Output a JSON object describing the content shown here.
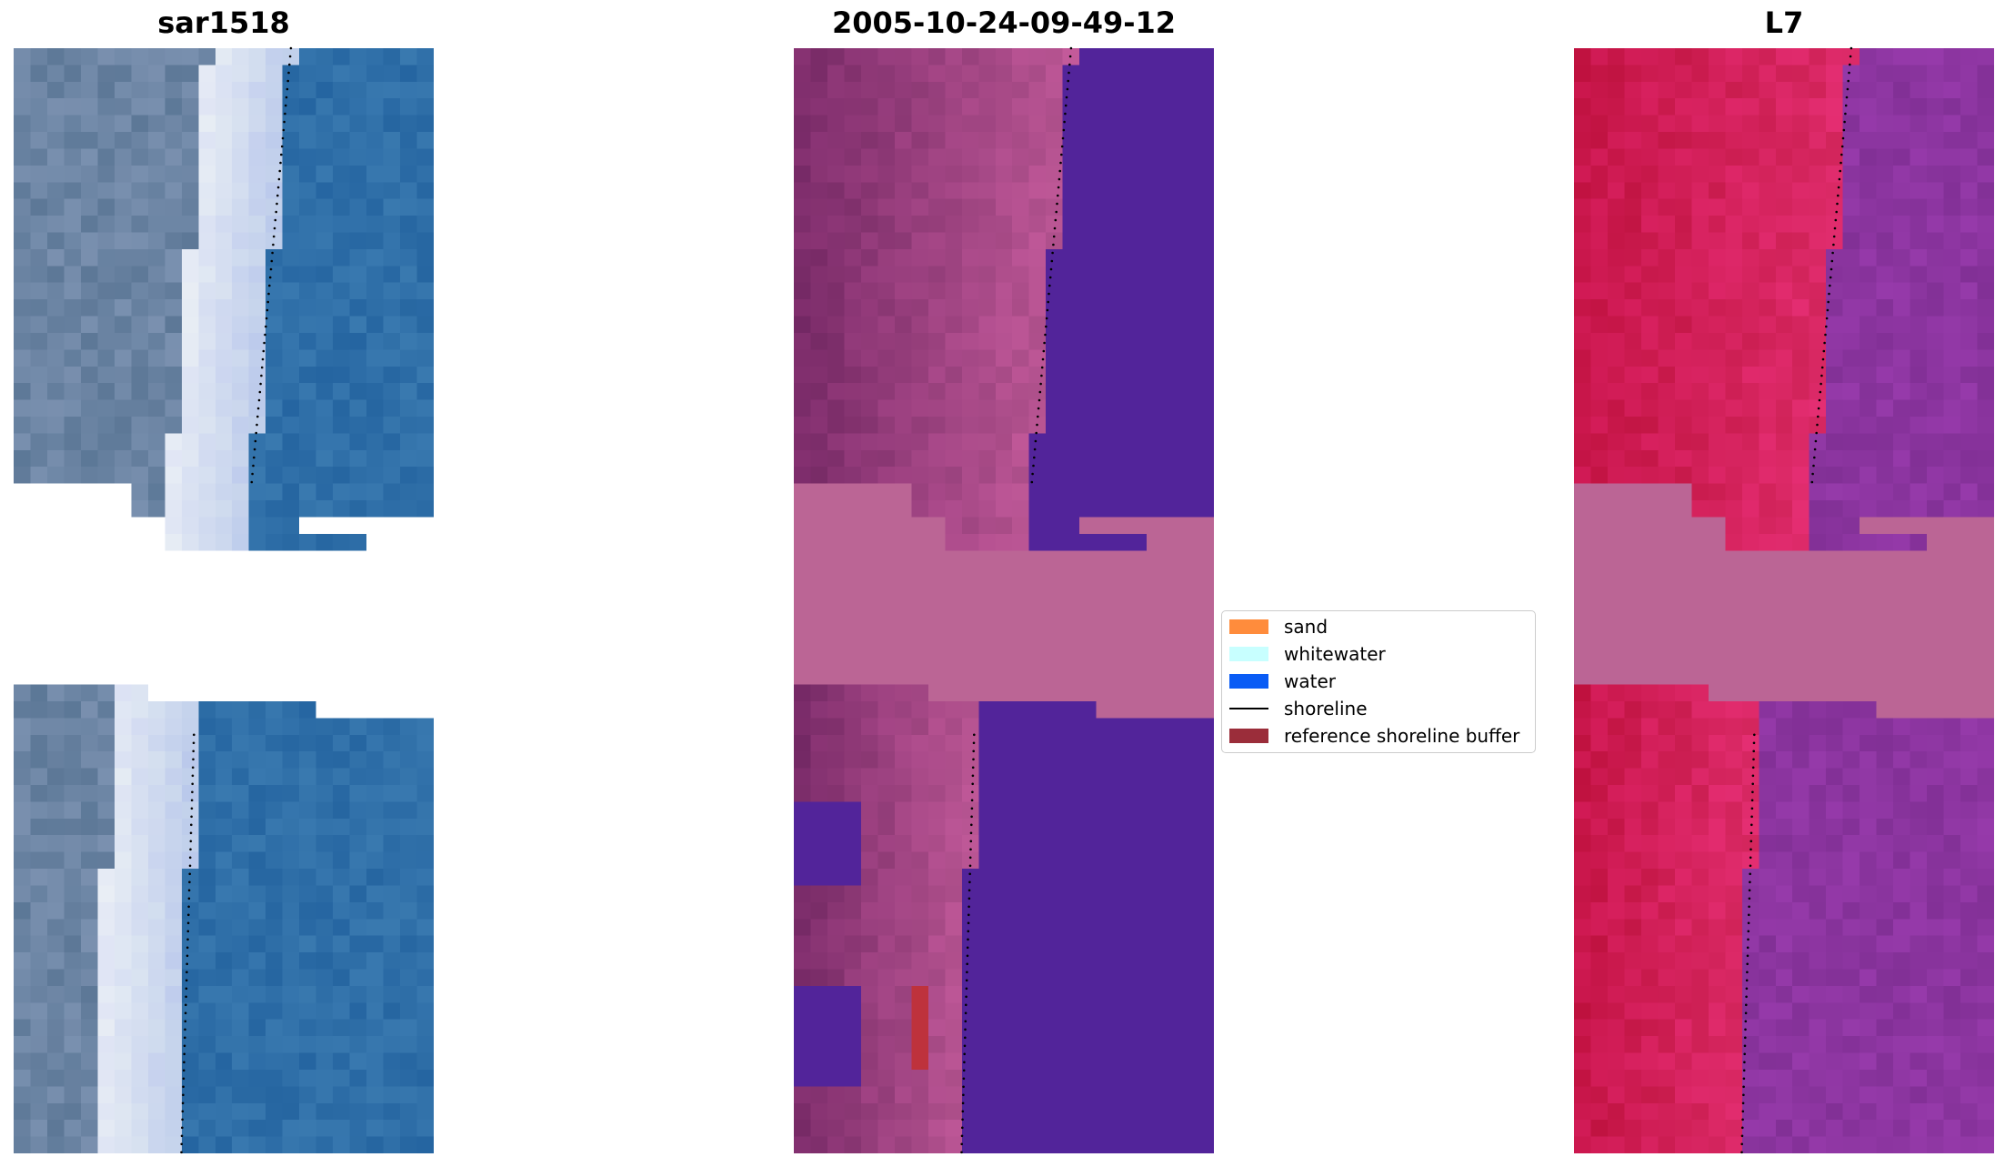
{
  "panels": [
    {
      "title": "sar1518",
      "kind": "rgb"
    },
    {
      "title": "2005-10-24-09-49-12",
      "kind": "classified"
    },
    {
      "title": "L7",
      "kind": "falsecolor"
    }
  ],
  "legend": {
    "items": [
      {
        "label": "sand",
        "type": "patch",
        "color": "#ff8c3c"
      },
      {
        "label": "whitewater",
        "type": "patch",
        "color": "#c8ffff"
      },
      {
        "label": "water",
        "type": "patch",
        "color": "#0a5cf5"
      },
      {
        "label": "shoreline",
        "type": "line",
        "color": "#000000"
      },
      {
        "label": "reference shoreline buffer",
        "type": "patch",
        "color": "#9b2d3a"
      }
    ]
  },
  "colors": {
    "rgb_land": "#6b84a3",
    "rgb_whitewater": "#e6ebf5",
    "rgb_water": "#2f6fa8",
    "classified_water": "#52249a",
    "classified_land": "#7d2d6b",
    "classified_nodata": "#bb6595",
    "falsecolor_land": "#c8164a",
    "falsecolor_water": "#8c35a0",
    "nodata_fill": "#bb6595",
    "shoreline": "#000000"
  }
}
